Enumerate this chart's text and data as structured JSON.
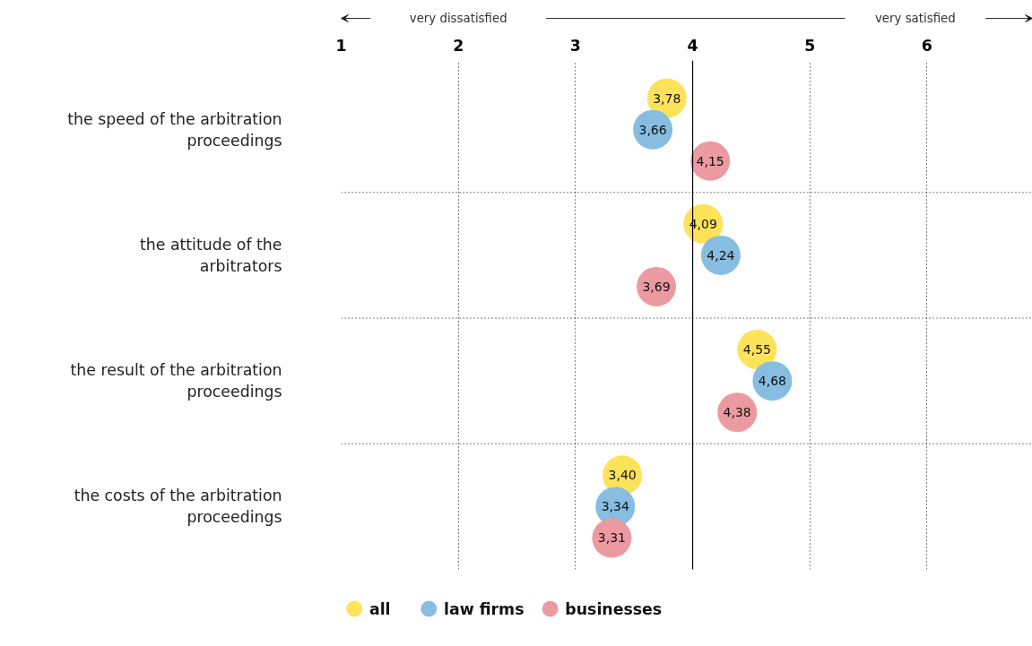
{
  "chart_data": {
    "type": "scatter",
    "orientation": "horizontal",
    "categories": [
      "the speed of the arbitration\nproceedings",
      "the attitude of the\narbitrators",
      "the result of the arbitration\nproceedings",
      "the costs of the arbitration\nproceedings"
    ],
    "series": [
      {
        "name": "all",
        "color": "#fde25a",
        "values": [
          3.78,
          4.09,
          4.55,
          3.4
        ],
        "value_labels": [
          "3,78",
          "4,09",
          "4,55",
          "3,40"
        ]
      },
      {
        "name": "law firms",
        "color": "#86bde0",
        "values": [
          3.66,
          4.24,
          4.68,
          3.34
        ],
        "value_labels": [
          "3,66",
          "4,24",
          "4,68",
          "3,34"
        ]
      },
      {
        "name": "businesses",
        "color": "#ec9aa2",
        "values": [
          4.15,
          3.69,
          4.38,
          3.31
        ],
        "value_labels": [
          "4,15",
          "3,69",
          "4,38",
          "3,31"
        ]
      }
    ],
    "xlim": [
      1,
      6.9
    ],
    "xticks": [
      1,
      2,
      3,
      4,
      5,
      6
    ],
    "ref_lines": [
      {
        "axis": "x",
        "value": 4,
        "color": "#000000",
        "line_style": "solid"
      }
    ],
    "annotations": [
      "very dissatisfied",
      "very satisfied"
    ],
    "grid": "x",
    "marker": "circle",
    "legend": "bottom left"
  }
}
